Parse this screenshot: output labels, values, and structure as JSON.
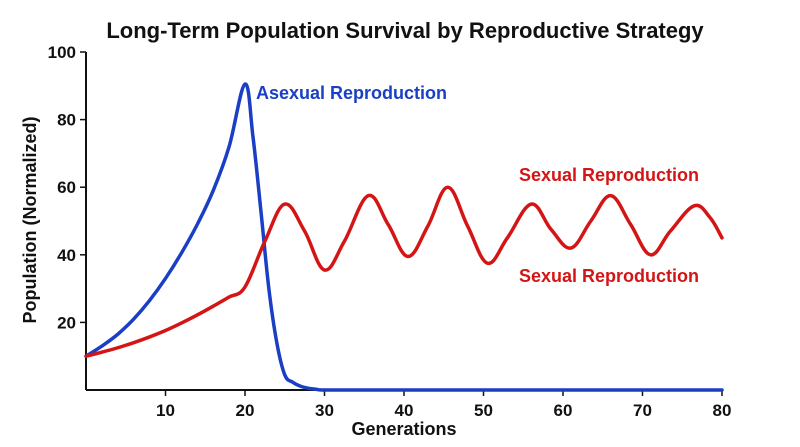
{
  "chart_data": {
    "type": "line",
    "title": "Long-Term Population Survival by Reproductive Strategy",
    "xlabel": "Generations",
    "ylabel": "Population (Normalized)",
    "xlim": [
      0,
      80
    ],
    "ylim": [
      0,
      100
    ],
    "xticks": [
      10,
      20,
      30,
      40,
      50,
      60,
      70,
      80
    ],
    "yticks": [
      20,
      40,
      60,
      80,
      100
    ],
    "grid": false,
    "legend": "none",
    "annotations": [
      {
        "text": "Asexual Reproduction",
        "color": "#1a3fc4"
      },
      {
        "text": "Sexual Reproduction",
        "color": "#d41515"
      },
      {
        "text": "Sexual Reproduction",
        "color": "#d41515"
      }
    ],
    "series": [
      {
        "color": "#1a3fc4",
        "x": [
          0,
          2,
          4,
          6,
          8,
          10,
          12,
          14,
          16,
          18,
          20,
          21,
          22,
          23,
          24,
          25,
          26,
          27,
          28,
          29,
          30,
          35,
          40,
          50,
          60,
          70,
          80
        ],
        "y": [
          10,
          13,
          16.5,
          21,
          26.5,
          33,
          40.5,
          49,
          59,
          72,
          90.5,
          75,
          53,
          30,
          14,
          4.5,
          2.3,
          1.1,
          0.5,
          0.2,
          0,
          0,
          0,
          0,
          0,
          0,
          0
        ]
      },
      {
        "color": "#d41515",
        "x": [
          0,
          2,
          4,
          6,
          8,
          10,
          12,
          14,
          16,
          18,
          20,
          22.5,
          25,
          27.5,
          30,
          32.5,
          35.5,
          38,
          40.5,
          43,
          45.5,
          48,
          50.5,
          53,
          56,
          58.5,
          61,
          63.5,
          66,
          68.5,
          71,
          73.5,
          76.5,
          78.5,
          80
        ],
        "y": [
          10,
          11.2,
          12.5,
          14,
          15.7,
          17.6,
          19.8,
          22.2,
          24.8,
          27.5,
          30.5,
          44,
          55,
          47,
          35.5,
          44,
          57.5,
          49,
          39.5,
          48.5,
          60,
          48.5,
          37.5,
          45,
          55,
          47.5,
          42,
          50,
          57.5,
          49,
          40,
          47,
          54.5,
          51,
          45
        ]
      }
    ]
  }
}
